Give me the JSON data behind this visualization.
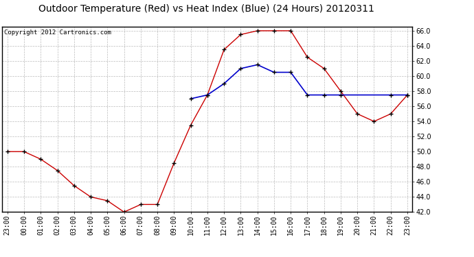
{
  "title": "Outdoor Temperature (Red) vs Heat Index (Blue) (24 Hours) 20120311",
  "copyright_text": "Copyright 2012 Cartronics.com",
  "background_color": "#ffffff",
  "plot_bg_color": "#ffffff",
  "grid_color": "#bbbbbb",
  "time_labels": [
    "23:00",
    "00:00",
    "01:00",
    "02:00",
    "03:00",
    "04:00",
    "05:00",
    "06:00",
    "07:00",
    "08:00",
    "09:00",
    "10:00",
    "11:00",
    "12:00",
    "13:00",
    "14:00",
    "15:00",
    "16:00",
    "17:00",
    "18:00",
    "19:00",
    "20:00",
    "21:00",
    "22:00",
    "23:00"
  ],
  "red_temps": [
    50.0,
    50.0,
    49.0,
    47.5,
    45.5,
    44.0,
    43.5,
    42.0,
    43.0,
    43.0,
    48.5,
    53.5,
    57.5,
    63.5,
    65.5,
    66.0,
    66.0,
    66.0,
    62.5,
    61.0,
    58.0,
    55.0,
    54.0,
    55.0,
    57.5
  ],
  "blue_temps": [
    null,
    null,
    null,
    null,
    null,
    null,
    null,
    null,
    null,
    null,
    null,
    57.0,
    57.5,
    59.0,
    61.0,
    61.5,
    60.5,
    60.5,
    57.5,
    57.5,
    57.5,
    null,
    null,
    57.5,
    57.5
  ],
  "ylim_min": 42.0,
  "ylim_max": 66.5,
  "red_color": "#cc0000",
  "blue_color": "#0000cc",
  "title_fontsize": 10,
  "tick_fontsize": 7,
  "copyright_fontsize": 6.5
}
